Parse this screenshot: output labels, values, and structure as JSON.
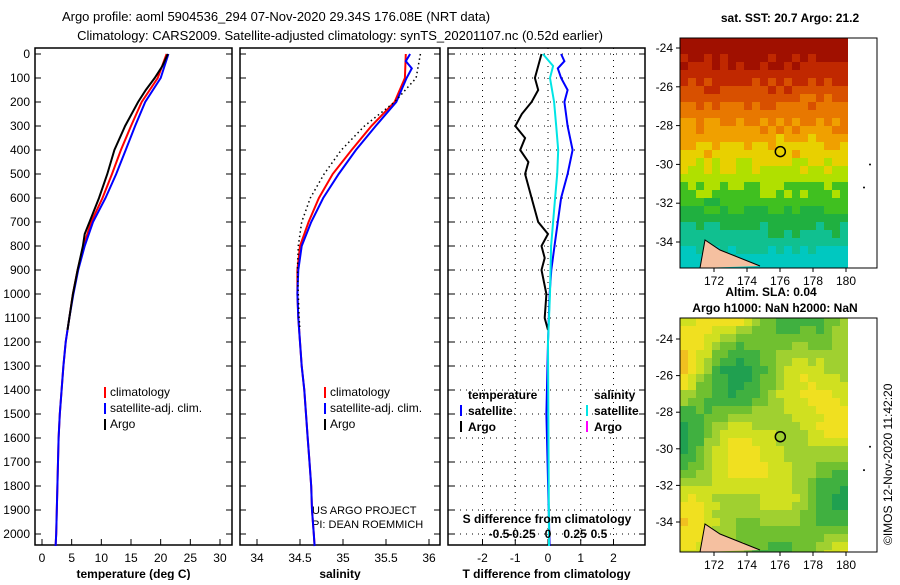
{
  "title_line1": "Argo profile: aoml 5904536_294 07-Nov-2020 29.34S 176.08E (NRT data)",
  "title_line2": "Climatology: CARS2009. Satellite-adjusted climatology: synTS_20201107.nc (0.52d earlier)",
  "credit": "©IMOS 12-Nov-2020 11:42:20",
  "project_line1": "US ARGO PROJECT",
  "project_line2": "PI: DEAN ROEMMICH",
  "colors": {
    "climatology": "#ff0000",
    "satellite": "#0000ff",
    "argo": "#000000",
    "sal_satellite": "#00e5e5",
    "sal_argo": "#ff00ff"
  },
  "chart_data": [
    {
      "type": "line",
      "name": "temperature",
      "xlabel": "temperature (deg C)",
      "xlim": [
        -1,
        31
      ],
      "ylim": [
        2050,
        0
      ],
      "xticks": [
        "0",
        "5",
        "10",
        "15",
        "20",
        "25",
        "30"
      ],
      "yticks": [
        "0",
        "100",
        "200",
        "300",
        "400",
        "500",
        "600",
        "700",
        "800",
        "900",
        "1000",
        "1100",
        "1200",
        "1300",
        "1400",
        "1500",
        "1600",
        "1700",
        "1800",
        "1900",
        "2000"
      ],
      "legend": [
        "climatology",
        "satellite-adj. clim.",
        "Argo"
      ],
      "series": [
        {
          "name": "climatology",
          "color": "#ff0000",
          "points": [
            [
              0,
              21.0
            ],
            [
              100,
              19.5
            ],
            [
              200,
              16.8
            ],
            [
              300,
              15.0
            ],
            [
              400,
              13.3
            ],
            [
              500,
              11.8
            ],
            [
              600,
              10.2
            ],
            [
              700,
              8.3
            ],
            [
              800,
              7.0
            ],
            [
              900,
              6.0
            ],
            [
              1000,
              5.2
            ],
            [
              1100,
              4.6
            ],
            [
              1200,
              4.0
            ],
            [
              1300,
              3.6
            ],
            [
              1400,
              3.3
            ],
            [
              1500,
              3.0
            ],
            [
              1600,
              2.8
            ],
            [
              1700,
              2.7
            ],
            [
              1800,
              2.6
            ],
            [
              1900,
              2.5
            ],
            [
              2000,
              2.4
            ],
            [
              2050,
              2.3
            ]
          ]
        },
        {
          "name": "satellite-adj. clim.",
          "color": "#0000ff",
          "points": [
            [
              0,
              21.3
            ],
            [
              100,
              20.0
            ],
            [
              200,
              17.4
            ],
            [
              300,
              15.7
            ],
            [
              400,
              14.1
            ],
            [
              500,
              12.5
            ],
            [
              600,
              10.7
            ],
            [
              700,
              8.6
            ],
            [
              800,
              7.2
            ],
            [
              900,
              6.1
            ],
            [
              1000,
              5.3
            ],
            [
              1100,
              4.6
            ],
            [
              1200,
              4.0
            ],
            [
              1300,
              3.6
            ],
            [
              1400,
              3.3
            ],
            [
              1500,
              3.0
            ],
            [
              1600,
              2.8
            ],
            [
              1700,
              2.7
            ],
            [
              1800,
              2.6
            ],
            [
              1900,
              2.5
            ],
            [
              2000,
              2.4
            ],
            [
              2050,
              2.3
            ]
          ]
        },
        {
          "name": "Argo",
          "color": "#000000",
          "points": [
            [
              0,
              21.2
            ],
            [
              50,
              20.3
            ],
            [
              100,
              19.0
            ],
            [
              150,
              17.5
            ],
            [
              200,
              16.2
            ],
            [
              300,
              14.0
            ],
            [
              400,
              12.2
            ],
            [
              500,
              11.0
            ],
            [
              600,
              9.6
            ],
            [
              700,
              8.0
            ],
            [
              750,
              7.2
            ],
            [
              800,
              6.9
            ],
            [
              900,
              6.0
            ],
            [
              1000,
              5.2
            ],
            [
              1100,
              4.6
            ],
            [
              1150,
              4.3
            ]
          ]
        }
      ]
    },
    {
      "type": "line",
      "name": "salinity",
      "xlabel": "salinity",
      "xlim": [
        33.8,
        36.1
      ],
      "ylim": [
        2050,
        0
      ],
      "xticks": [
        "34",
        "34.5",
        "35",
        "35.5",
        "36"
      ],
      "legend": [
        "climatology",
        "satellite-adj. clim.",
        "Argo"
      ],
      "series": [
        {
          "name": "climatology",
          "color": "#ff0000",
          "points": [
            [
              0,
              35.73
            ],
            [
              100,
              35.72
            ],
            [
              200,
              35.6
            ],
            [
              300,
              35.33
            ],
            [
              400,
              35.1
            ],
            [
              500,
              34.88
            ],
            [
              600,
              34.72
            ],
            [
              700,
              34.6
            ],
            [
              800,
              34.5
            ],
            [
              900,
              34.47
            ],
            [
              1000,
              34.47
            ],
            [
              1100,
              34.48
            ],
            [
              1200,
              34.5
            ],
            [
              1300,
              34.52
            ],
            [
              1400,
              34.55
            ],
            [
              1500,
              34.57
            ],
            [
              1600,
              34.59
            ],
            [
              1700,
              34.61
            ],
            [
              1800,
              34.63
            ],
            [
              1900,
              34.64
            ],
            [
              2000,
              34.66
            ],
            [
              2050,
              34.67
            ]
          ]
        },
        {
          "name": "satellite-adj. clim.",
          "color": "#0000ff",
          "points": [
            [
              0,
              35.78
            ],
            [
              30,
              35.73
            ],
            [
              60,
              35.8
            ],
            [
              100,
              35.74
            ],
            [
              200,
              35.62
            ],
            [
              300,
              35.38
            ],
            [
              400,
              35.15
            ],
            [
              500,
              34.95
            ],
            [
              600,
              34.77
            ],
            [
              700,
              34.63
            ],
            [
              800,
              34.52
            ],
            [
              900,
              34.48
            ],
            [
              1000,
              34.47
            ],
            [
              1100,
              34.48
            ],
            [
              1200,
              34.5
            ],
            [
              1300,
              34.52
            ],
            [
              1400,
              34.55
            ],
            [
              1500,
              34.57
            ],
            [
              1600,
              34.59
            ],
            [
              1700,
              34.61
            ],
            [
              1800,
              34.63
            ],
            [
              1900,
              34.64
            ],
            [
              2000,
              34.66
            ],
            [
              2050,
              34.67
            ]
          ]
        },
        {
          "name": "Argo",
          "color": "#000000",
          "dotted": true,
          "points": [
            [
              0,
              35.9
            ],
            [
              100,
              35.85
            ],
            [
              200,
              35.6
            ],
            [
              300,
              35.25
            ],
            [
              400,
              34.98
            ],
            [
              500,
              34.78
            ],
            [
              600,
              34.62
            ],
            [
              700,
              34.52
            ],
            [
              800,
              34.48
            ],
            [
              900,
              34.47
            ],
            [
              1000,
              34.48
            ],
            [
              1100,
              34.49
            ],
            [
              1150,
              34.5
            ]
          ]
        }
      ]
    },
    {
      "type": "line",
      "name": "difference",
      "xlabel": "T difference from climatology",
      "xlim": [
        -3,
        3
      ],
      "ylim": [
        2050,
        0
      ],
      "xticks": [
        "-2",
        "-1",
        "0",
        "1",
        "2"
      ],
      "s_label": "S difference from climatology",
      "s_xticks": [
        "-0.5",
        "-0.25",
        "0",
        "0.25",
        "0.5"
      ],
      "legend_temperature": {
        "title": "temperature",
        "items": [
          "satellite",
          "Argo"
        ]
      },
      "legend_salinity": {
        "title": "salinity",
        "items": [
          "satellite",
          "Argo"
        ]
      },
      "series": [
        {
          "name": "T satellite",
          "color": "#0000ff",
          "points": [
            [
              0,
              0.4
            ],
            [
              30,
              0.5
            ],
            [
              60,
              0.3
            ],
            [
              100,
              0.4
            ],
            [
              150,
              0.6
            ],
            [
              200,
              0.5
            ],
            [
              300,
              0.6
            ],
            [
              400,
              0.75
            ],
            [
              500,
              0.6
            ],
            [
              600,
              0.4
            ],
            [
              700,
              0.3
            ],
            [
              800,
              0.2
            ],
            [
              900,
              0.1
            ],
            [
              1000,
              0.05
            ],
            [
              1200,
              0.0
            ],
            [
              1500,
              -0.05
            ],
            [
              2050,
              0.05
            ]
          ]
        },
        {
          "name": "T Argo",
          "color": "#000000",
          "points": [
            [
              0,
              -0.2
            ],
            [
              50,
              -0.3
            ],
            [
              100,
              -0.4
            ],
            [
              150,
              -0.3
            ],
            [
              200,
              -0.5
            ],
            [
              250,
              -0.8
            ],
            [
              300,
              -1.0
            ],
            [
              350,
              -0.7
            ],
            [
              400,
              -0.85
            ],
            [
              450,
              -0.6
            ],
            [
              500,
              -0.7
            ],
            [
              600,
              -0.5
            ],
            [
              700,
              -0.3
            ],
            [
              750,
              0.0
            ],
            [
              800,
              -0.2
            ],
            [
              850,
              -0.1
            ],
            [
              900,
              -0.2
            ],
            [
              1000,
              -0.05
            ],
            [
              1100,
              -0.1
            ],
            [
              1150,
              0.0
            ]
          ]
        },
        {
          "name": "S satellite",
          "color": "#00e5e5",
          "scale": "S",
          "points": [
            [
              0,
              -0.05
            ],
            [
              50,
              0.05
            ],
            [
              100,
              0.02
            ],
            [
              200,
              0.06
            ],
            [
              300,
              0.08
            ],
            [
              400,
              0.1
            ],
            [
              500,
              0.09
            ],
            [
              600,
              0.07
            ],
            [
              700,
              0.05
            ],
            [
              800,
              0.03
            ],
            [
              1000,
              0.02
            ],
            [
              1200,
              0.0
            ],
            [
              2050,
              0.01
            ]
          ]
        }
      ]
    },
    {
      "type": "heatmap",
      "name": "sst-map",
      "title": "sat. SST: 20.7 Argo: 21.2",
      "xticks": [
        "172",
        "174",
        "176",
        "178",
        "180"
      ],
      "yticks": [
        "-24",
        "-26",
        "-28",
        "-30",
        "-32",
        "-34"
      ],
      "argo_location": {
        "lon": 176.08,
        "lat": -29.34
      }
    },
    {
      "type": "heatmap",
      "name": "sla-map",
      "title": "Altim. SLA: 0.04",
      "subtitle": "Argo h1000: NaN h2000: NaN",
      "xticks": [
        "172",
        "174",
        "176",
        "178",
        "180"
      ],
      "yticks": [
        "-24",
        "-26",
        "-28",
        "-30",
        "-32",
        "-34"
      ],
      "argo_location": {
        "lon": 176.08,
        "lat": -29.34
      }
    }
  ]
}
